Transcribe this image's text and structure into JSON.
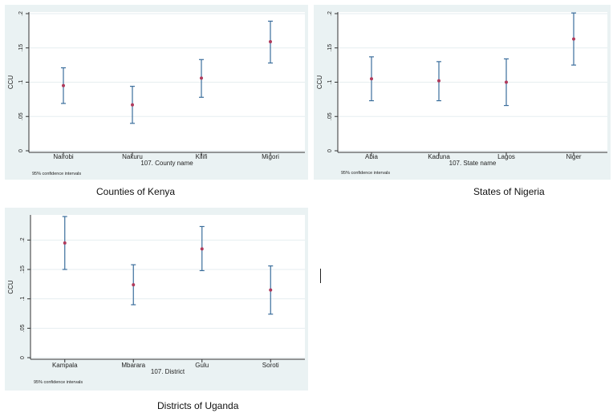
{
  "chart_data": [
    {
      "type": "scatter",
      "errorbars": true,
      "categories": [
        "Nairobi",
        "Nakuru",
        "Kilifi",
        "Migori"
      ],
      "values": [
        0.095,
        0.067,
        0.106,
        0.159
      ],
      "lower": [
        0.069,
        0.04,
        0.078,
        0.128
      ],
      "upper": [
        0.121,
        0.094,
        0.133,
        0.189
      ],
      "ylim": [
        0,
        0.2
      ],
      "yticks": [
        0,
        0.05,
        0.1,
        0.15,
        0.2
      ],
      "ytick_labels": [
        "0",
        ".05",
        ".1",
        ".15",
        ".2"
      ],
      "ylabel": "CCU",
      "xlabel": "107. County name",
      "note": "95% confidence intervals",
      "caption": "Counties of Kenya",
      "colors": {
        "bar": "#3b6e9c",
        "marker": "#b03a5b"
      }
    },
    {
      "type": "scatter",
      "errorbars": true,
      "categories": [
        "Abia",
        "Kaduna",
        "Lagos",
        "Niger"
      ],
      "values": [
        0.105,
        0.102,
        0.1,
        0.163
      ],
      "lower": [
        0.073,
        0.073,
        0.066,
        0.125
      ],
      "upper": [
        0.137,
        0.13,
        0.134,
        0.201
      ],
      "ylim": [
        0,
        0.2
      ],
      "yticks": [
        0,
        0.05,
        0.1,
        0.15,
        0.2
      ],
      "ytick_labels": [
        "0",
        ".05",
        ".1",
        ".15",
        ".2"
      ],
      "ylabel": "CCU",
      "xlabel": "107. State name",
      "note": "95% confidence intervals",
      "caption": "States of Nigeria",
      "colors": {
        "bar": "#3b6e9c",
        "marker": "#b03a5b"
      }
    },
    {
      "type": "scatter",
      "errorbars": true,
      "categories": [
        "Kampala",
        "Mbarara",
        "Gulu",
        "Soroti"
      ],
      "values": [
        0.195,
        0.124,
        0.185,
        0.115
      ],
      "lower": [
        0.15,
        0.09,
        0.148,
        0.074
      ],
      "upper": [
        0.24,
        0.158,
        0.223,
        0.156
      ],
      "ylim": [
        0,
        0.24
      ],
      "yticks": [
        0,
        0.05,
        0.1,
        0.15,
        0.2
      ],
      "ytick_labels": [
        "0",
        ".05",
        ".1",
        ".15",
        ".2"
      ],
      "ylabel": "CCU",
      "xlabel": "107. District",
      "note": "95% confidence intervals",
      "caption": "Districts of Uganda",
      "colors": {
        "bar": "#3b6e9c",
        "marker": "#b03a5b"
      }
    }
  ]
}
